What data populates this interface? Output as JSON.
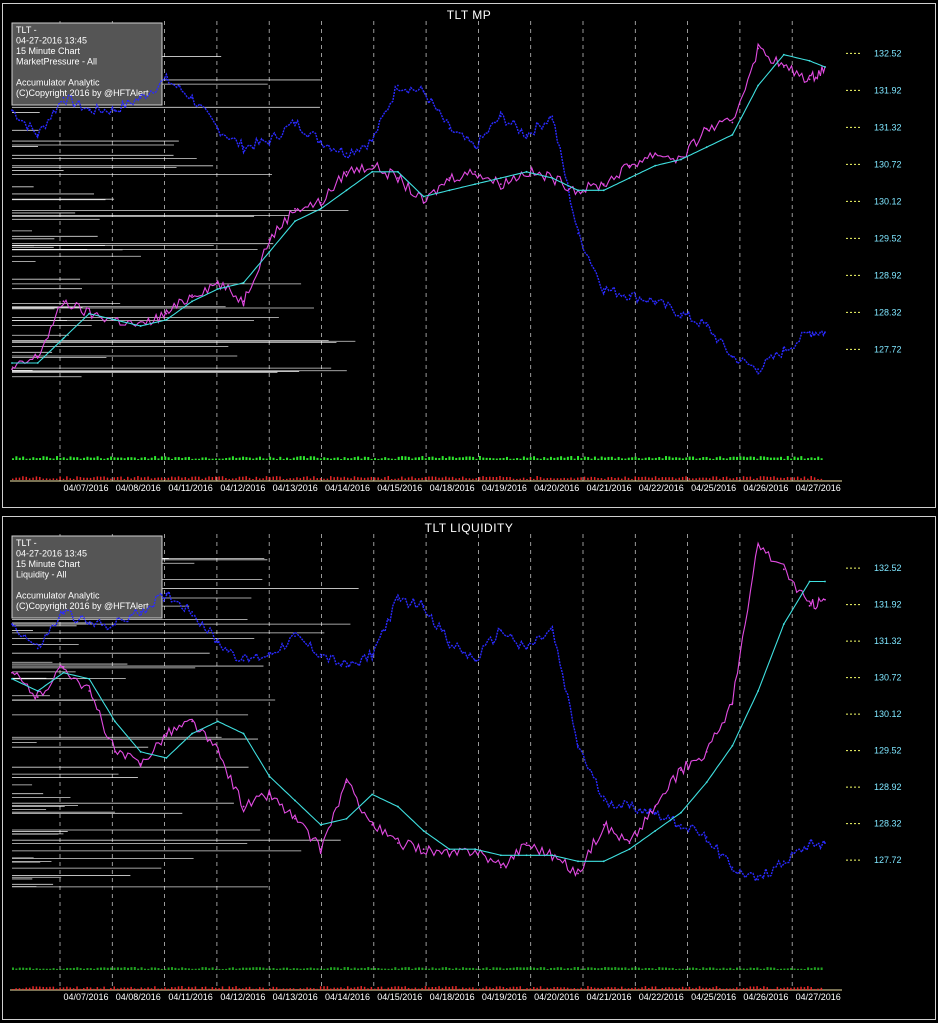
{
  "colors": {
    "background": "#000000",
    "price": "#2a2aff",
    "indicator": "#e24be2",
    "average": "#3fe0e0",
    "profile": "#ffffff",
    "grid": "#ffffff",
    "price_tick": "#f6ff6a",
    "price_label": "#7fe6ff",
    "volume_green": "#2ee82e",
    "volume_red": "#ff2a2a",
    "axis_line": "#f3e6a8",
    "info_box": "#555555"
  },
  "chart_data": [
    {
      "type": "line",
      "title": "TLT MP",
      "info_lines": [
        "TLT -",
        "04-27-2016  13:45",
        "15 Minute Chart",
        "MarketPressure - All",
        "",
        "Accumulator Analytic",
        "(C)Copyright 2016 by @HFTAlert"
      ],
      "x_tick_labels": [
        "04/07/2016",
        "04/08/2016",
        "04/11/2016",
        "04/12/2016",
        "04/13/2016",
        "04/14/2016",
        "04/15/2016",
        "04/18/2016",
        "04/19/2016",
        "04/20/2016",
        "04/21/2016",
        "04/22/2016",
        "04/25/2016",
        "04/26/2016",
        "04/27/2016"
      ],
      "y_tick_labels": [
        "132.52",
        "131.92",
        "131.32",
        "130.72",
        "130.12",
        "129.52",
        "128.92",
        "128.32",
        "127.72"
      ],
      "ylim": [
        126.9,
        132.9
      ],
      "x": [
        0,
        0.5,
        1,
        1.5,
        2,
        2.5,
        3,
        3.5,
        4,
        4.5,
        5,
        5.5,
        6,
        6.5,
        7,
        7.5,
        8,
        8.5,
        9,
        9.5,
        10,
        10.5,
        11,
        11.5,
        12,
        12.5,
        13,
        13.5,
        14,
        14.5,
        15,
        15.5,
        15.8
      ],
      "series": [
        {
          "values": [
            131.6,
            131.2,
            131.8,
            131.6,
            131.6,
            131.8,
            132.1,
            131.8,
            131.3,
            131.0,
            131.1,
            131.4,
            131.1,
            130.9,
            131.1,
            132.0,
            131.9,
            131.3,
            131.0,
            131.5,
            131.2,
            131.5,
            129.6,
            128.7,
            128.6,
            128.5,
            128.3,
            128.1,
            127.6,
            127.4,
            127.7,
            128.0,
            128.0
          ]
        },
        {
          "values": [
            127.4,
            127.6,
            128.5,
            128.3,
            128.2,
            128.1,
            128.3,
            128.6,
            128.8,
            128.5,
            129.5,
            130.0,
            130.1,
            130.6,
            130.7,
            130.5,
            130.1,
            130.5,
            130.6,
            130.4,
            130.6,
            130.5,
            130.3,
            130.4,
            130.7,
            130.9,
            130.8,
            131.3,
            131.4,
            132.6,
            132.3,
            132.1,
            132.3
          ]
        },
        {
          "values": [
            127.5,
            127.5,
            127.9,
            128.3,
            128.2,
            128.1,
            128.2,
            128.5,
            128.7,
            128.8,
            129.3,
            129.8,
            130.0,
            130.3,
            130.6,
            130.6,
            130.2,
            130.3,
            130.4,
            130.5,
            130.6,
            130.5,
            130.3,
            130.3,
            130.5,
            130.7,
            130.8,
            131.0,
            131.2,
            132.0,
            132.5,
            132.4,
            132.3
          ]
        }
      ]
    },
    {
      "type": "line",
      "title": "TLT LIQUIDITY",
      "info_lines": [
        "TLT -",
        "04-27-2016  13:45",
        "15 Minute Chart",
        "Liquidity - All",
        "",
        "Accumulator Analytic",
        "(C)Copyright 2016 by @HFTAlert"
      ],
      "x_tick_labels": [
        "04/07/2016",
        "04/08/2016",
        "04/11/2016",
        "04/12/2016",
        "04/13/2016",
        "04/14/2016",
        "04/15/2016",
        "04/18/2016",
        "04/19/2016",
        "04/20/2016",
        "04/21/2016",
        "04/22/2016",
        "04/25/2016",
        "04/26/2016",
        "04/27/2016"
      ],
      "y_tick_labels": [
        "132.52",
        "131.92",
        "131.32",
        "130.72",
        "130.12",
        "129.52",
        "128.92",
        "128.32",
        "127.72"
      ],
      "ylim": [
        126.9,
        132.9
      ],
      "x": [
        0,
        0.5,
        1,
        1.5,
        2,
        2.5,
        3,
        3.5,
        4,
        4.5,
        5,
        5.5,
        6,
        6.5,
        7,
        7.5,
        8,
        8.5,
        9,
        9.5,
        10,
        10.5,
        11,
        11.5,
        12,
        12.5,
        13,
        13.5,
        14,
        14.5,
        15,
        15.5,
        15.8
      ],
      "series": [
        {
          "values": [
            131.6,
            131.2,
            131.8,
            131.6,
            131.6,
            131.8,
            132.1,
            131.8,
            131.3,
            131.0,
            131.1,
            131.4,
            131.1,
            130.9,
            131.1,
            132.0,
            131.9,
            131.3,
            131.0,
            131.5,
            131.2,
            131.5,
            129.6,
            128.7,
            128.6,
            128.5,
            128.3,
            128.1,
            127.6,
            127.4,
            127.7,
            128.0,
            128.0
          ]
        },
        {
          "values": [
            130.8,
            130.4,
            130.9,
            130.5,
            129.5,
            129.3,
            129.8,
            130.0,
            129.5,
            128.6,
            128.8,
            128.4,
            127.9,
            129.0,
            128.3,
            128.0,
            127.9,
            127.8,
            127.9,
            127.6,
            128.0,
            127.8,
            127.5,
            128.3,
            128.0,
            128.6,
            129.2,
            129.5,
            130.3,
            132.9,
            132.5,
            131.9,
            132.0
          ]
        },
        {
          "values": [
            130.7,
            130.5,
            130.8,
            130.7,
            130.0,
            129.5,
            129.4,
            129.8,
            130.0,
            129.8,
            129.1,
            128.7,
            128.3,
            128.4,
            128.8,
            128.6,
            128.2,
            127.9,
            127.9,
            127.8,
            127.8,
            127.8,
            127.7,
            127.7,
            127.9,
            128.2,
            128.5,
            129.0,
            129.6,
            130.5,
            131.6,
            132.3,
            132.3
          ]
        }
      ]
    }
  ]
}
